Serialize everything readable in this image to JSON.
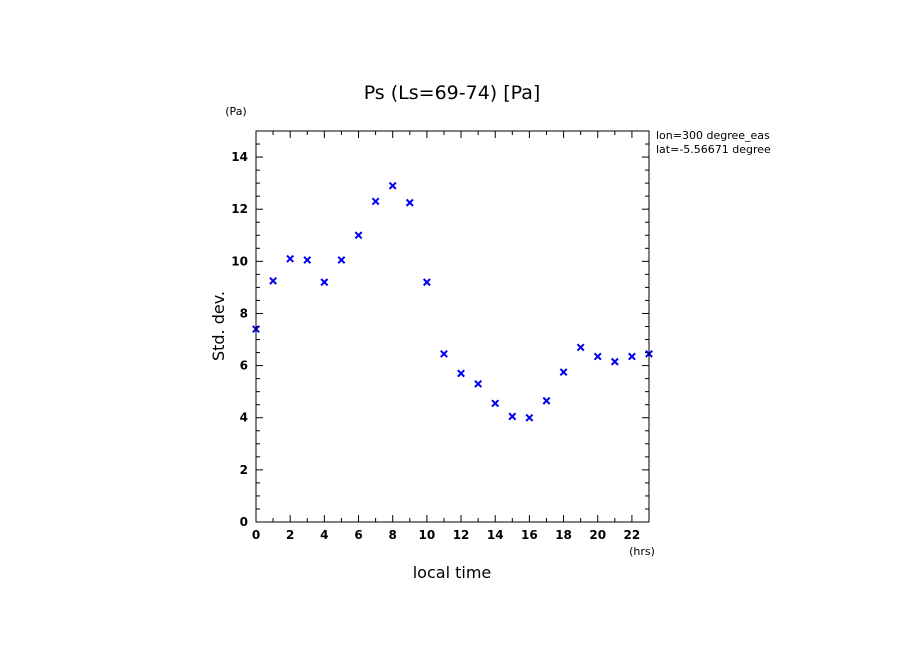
{
  "chart_data": {
    "type": "scatter",
    "title": "Ps (Ls=69-74) [Pa]",
    "xlabel": "local time",
    "ylabel": "Std. dev.",
    "x_unit": "(hrs)",
    "y_unit": "(Pa)",
    "xlim": [
      0,
      23
    ],
    "ylim": [
      0,
      15
    ],
    "x_ticks": [
      0,
      2,
      4,
      6,
      8,
      10,
      12,
      14,
      16,
      18,
      20,
      22
    ],
    "x_tick_labels": [
      "0",
      "2",
      "4",
      "6",
      "8",
      "10",
      "12",
      "14",
      "16",
      "18",
      "20",
      "22"
    ],
    "y_ticks": [
      0,
      2,
      4,
      6,
      8,
      10,
      12,
      14
    ],
    "y_tick_labels": [
      "0",
      "2",
      "4",
      "6",
      "8",
      "10",
      "12",
      "14"
    ],
    "annotations": [
      "lon=300 degree_eas",
      "lat=-5.56671 degree"
    ],
    "grid": false,
    "marker": "x",
    "marker_color": "#0000ee",
    "series": [
      {
        "x": [
          0,
          1,
          2,
          3,
          4,
          5,
          6,
          7,
          8,
          9,
          10,
          11,
          12,
          13,
          14,
          15,
          16,
          17,
          18,
          19,
          20,
          21,
          22,
          23
        ],
        "y": [
          7.4,
          9.25,
          10.1,
          10.05,
          9.2,
          10.05,
          11.0,
          12.3,
          12.9,
          12.25,
          9.2,
          6.45,
          5.7,
          5.3,
          4.55,
          4.05,
          4.0,
          4.65,
          5.75,
          6.7,
          6.35,
          6.15,
          6.35,
          6.45
        ]
      }
    ]
  }
}
